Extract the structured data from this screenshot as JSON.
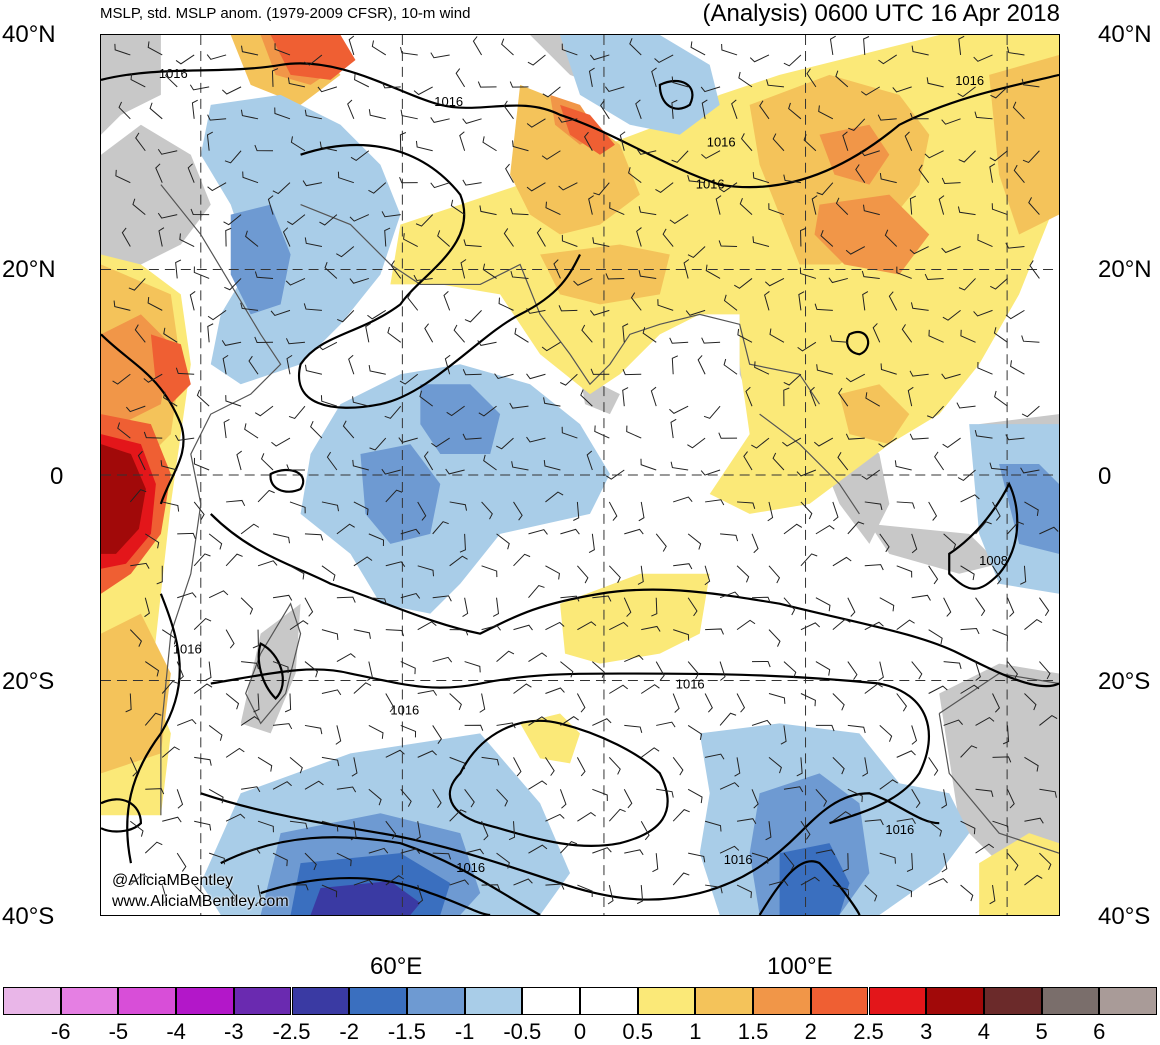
{
  "header": {
    "left_title": "MSLP, std. MSLP anom. (1979-2009 CFSR), 10-m wind",
    "right_title": "(Analysis) 0600 UTC 16 Apr 2018"
  },
  "axes": {
    "lat_labels": [
      "40°N",
      "20°N",
      "0",
      "20°S",
      "40°S"
    ],
    "lon_labels": [
      "60°E",
      "100°E"
    ]
  },
  "credit": {
    "handle": "@AliciaMBentley",
    "site": "www.AliciaMBentley.com"
  },
  "contour_labels": [
    "1016",
    "1016",
    "1016",
    "1016",
    "1016",
    "1016",
    "1016",
    "1016",
    "1016",
    "1016",
    "1008"
  ],
  "colorbar": {
    "labels": [
      "-6",
      "-5",
      "-4",
      "-3",
      "-2.5",
      "-2",
      "-1.5",
      "-1",
      "-0.5",
      "0",
      "0.5",
      "1",
      "1.5",
      "2",
      "2.5",
      "3",
      "4",
      "5",
      "6"
    ],
    "colors": [
      "#e9b6e8",
      "#e57fe3",
      "#d84ed8",
      "#b317c9",
      "#6a2ab0",
      "#3a3aa3",
      "#3a6fbf",
      "#6e9ad2",
      "#a9cde8",
      "#ffffff",
      "#ffffff",
      "#fbe978",
      "#f4c35a",
      "#f19648",
      "#ef5f33",
      "#e3161a",
      "#a10909",
      "#6b2a2a",
      "#7a6e6b",
      "#a99b98"
    ]
  }
}
